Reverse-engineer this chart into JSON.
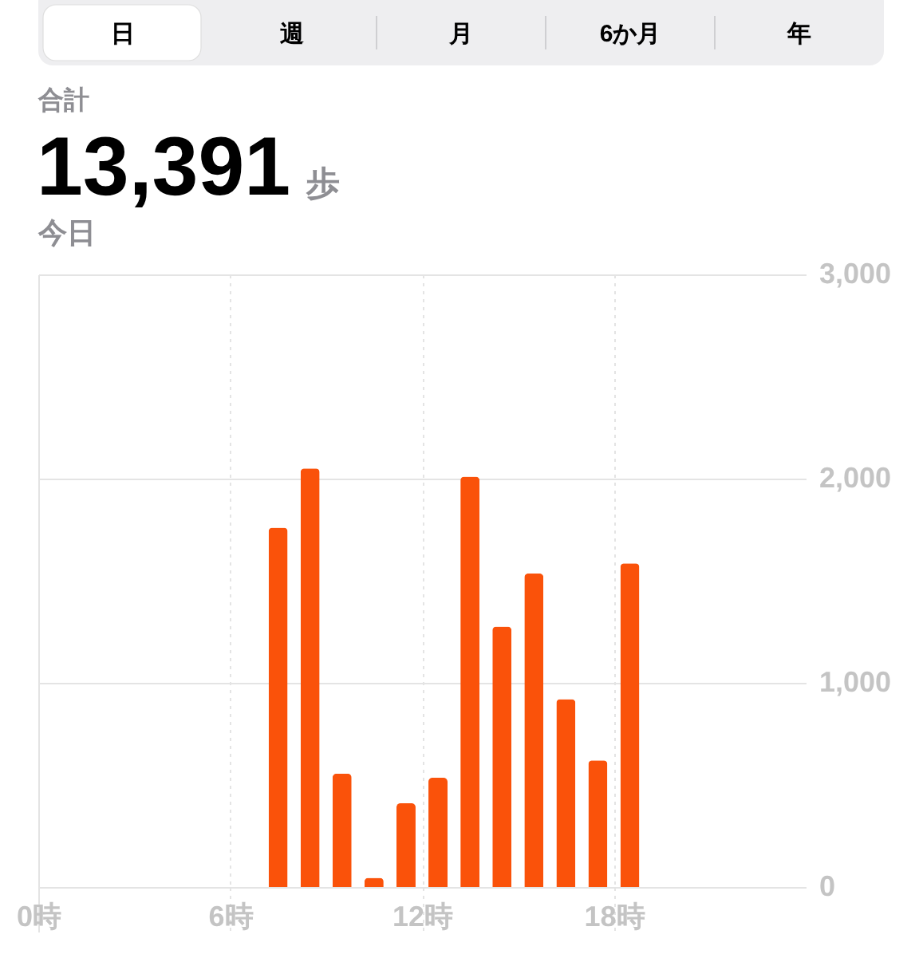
{
  "chart_data": {
    "type": "bar",
    "title": "13,391",
    "subtitle": "今日",
    "annotations": [
      "日",
      "週",
      "月",
      "6か月",
      "年",
      "合計",
      "歩"
    ],
    "x": [
      7.5,
      8.5,
      9.5,
      10.5,
      11.5,
      12.5,
      13.5,
      14.5,
      15.5,
      16.5,
      17.5,
      18.5
    ],
    "values": [
      1760,
      2050,
      555,
      45,
      410,
      535,
      2010,
      1275,
      1535,
      920,
      620,
      1585
    ],
    "color": "#fa520a",
    "xlim": [
      0,
      24
    ],
    "xticks": [
      {
        "value": 0,
        "label": "0時"
      },
      {
        "value": 6,
        "label": "6時"
      },
      {
        "value": 12,
        "label": "12時"
      },
      {
        "value": 18,
        "label": "18時"
      }
    ],
    "ylim": [
      0,
      3000
    ],
    "yticks": [
      {
        "value": 0,
        "label": "0"
      },
      {
        "value": 1000,
        "label": "1,000"
      },
      {
        "value": 2000,
        "label": "2,000"
      },
      {
        "value": 3000,
        "label": "3,000"
      }
    ],
    "grid": true
  }
}
